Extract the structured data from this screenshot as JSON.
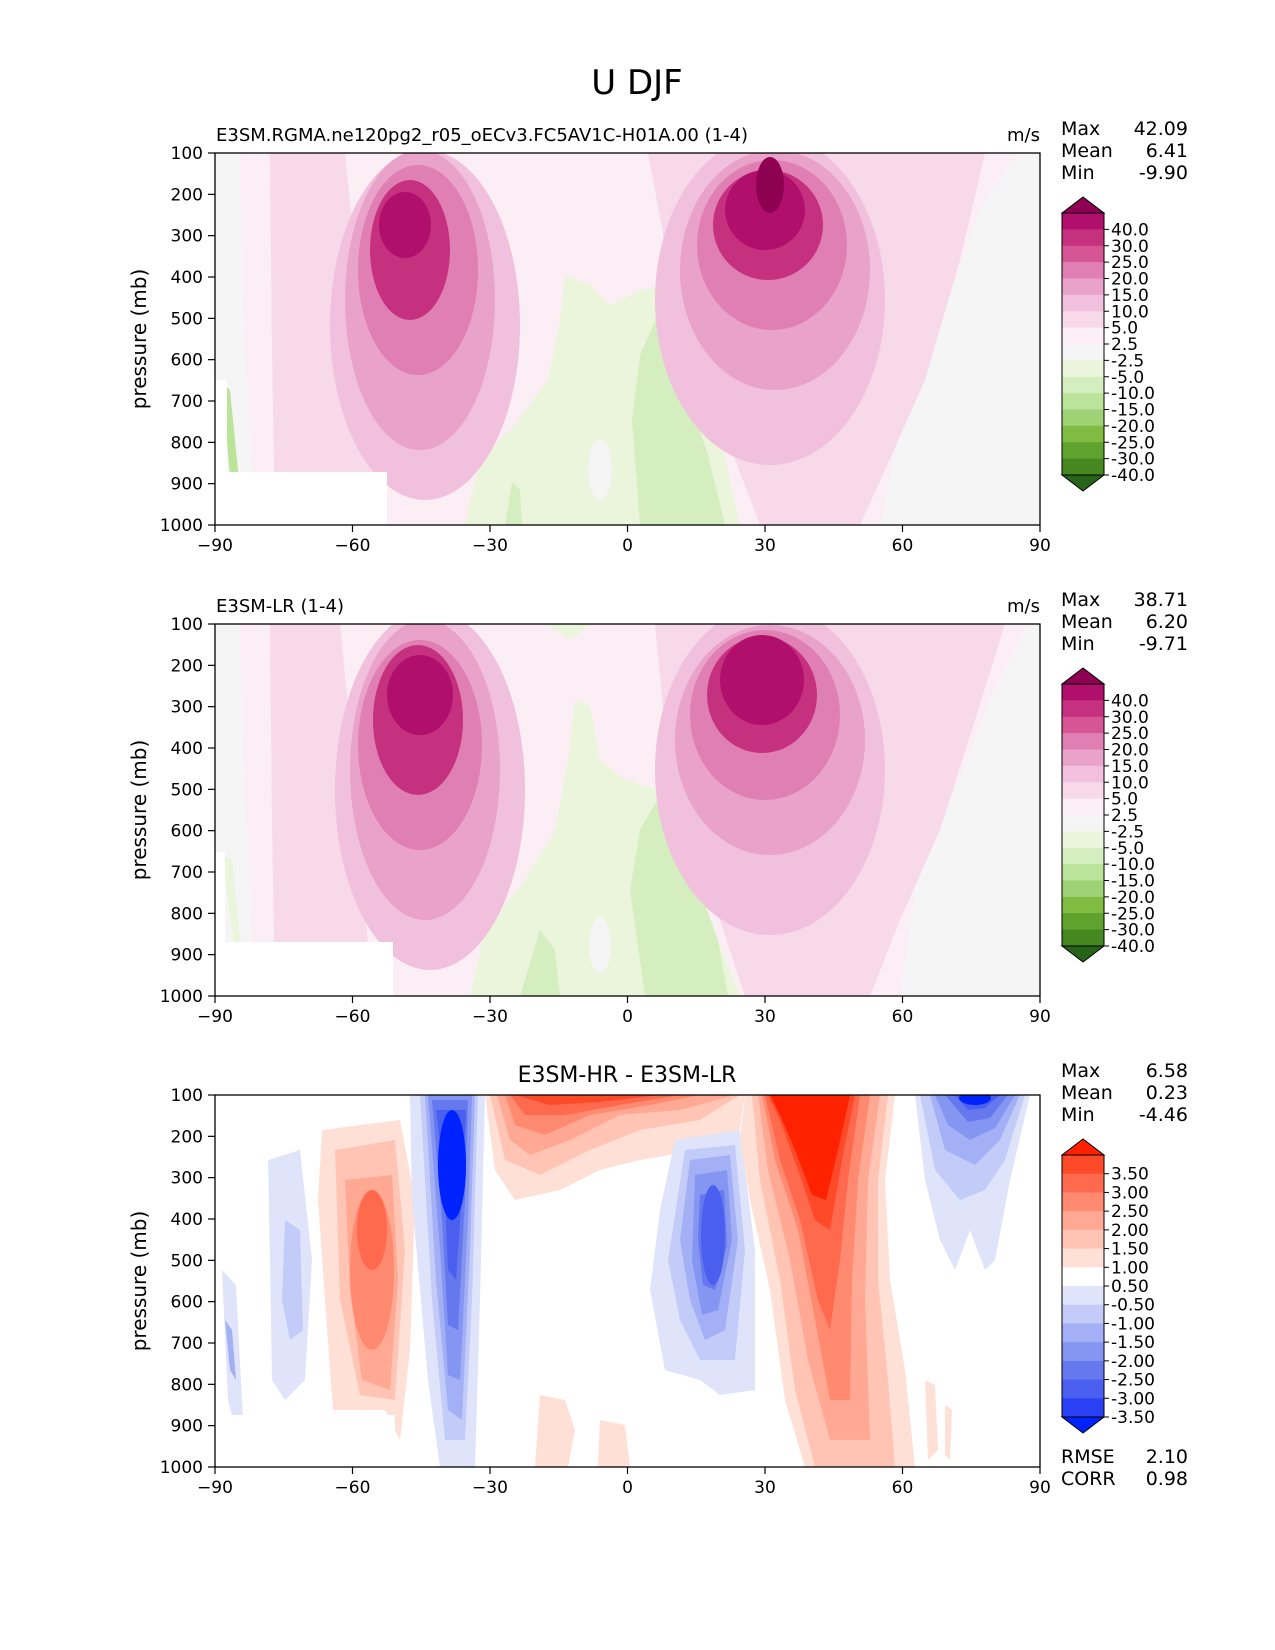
{
  "figure": {
    "title": "U DJF"
  },
  "chart_data": [
    {
      "type": "contour",
      "panel": "test",
      "title_left": "E3SM.RGMA.ne120pg2_r05_oECv3.FC5AV1C-H01A.00 (1-4)",
      "title_center": "",
      "title_right": "m/s",
      "xlabel": "",
      "ylabel": "pressure (mb)",
      "xlim": [
        -90,
        90
      ],
      "ylim": [
        1000,
        100
      ],
      "xticks": [
        -90,
        -60,
        -30,
        0,
        30,
        60,
        90
      ],
      "xtick_labels": [
        "−90",
        "−60",
        "−30",
        "0",
        "30",
        "60",
        "90"
      ],
      "yticks": [
        100,
        200,
        300,
        400,
        500,
        600,
        700,
        800,
        900,
        1000
      ],
      "yticks_labels": [
        "100",
        "200",
        "300",
        "400",
        "500",
        "600",
        "700",
        "800",
        "900",
        "1000"
      ],
      "stats": [
        {
          "label": "Max",
          "value": "42.09"
        },
        {
          "label": "Mean",
          "value": "6.41"
        },
        {
          "label": "Min",
          "value": "-9.90"
        }
      ],
      "colorbar": {
        "levels": [
          "40.0",
          "30.0",
          "25.0",
          "20.0",
          "15.0",
          "10.0",
          "5.0",
          "2.5",
          "-2.5",
          "-5.0",
          "-10.0",
          "-15.0",
          "-20.0",
          "-25.0",
          "-30.0",
          "-40.0"
        ],
        "colors": [
          "#8e0152",
          "#b0106c",
          "#c6317f",
          "#d65594",
          "#e07fb3",
          "#e9a2c9",
          "#f1c0dd",
          "#f7d9ea",
          "#fbeef4",
          "#f5f5f5",
          "#ebf5dc",
          "#d5eec0",
          "#bce39a",
          "#9fd274",
          "#7fbc41",
          "#5fa22d",
          "#44881f",
          "#276419"
        ]
      },
      "features": [
        {
          "name": "southern-jet",
          "center_lat": -45,
          "peak_pressure": 250,
          "peak_value": 35
        },
        {
          "name": "northern-jet",
          "center_lat": 30,
          "peak_pressure": 200,
          "peak_value": 42.09
        },
        {
          "name": "tropical-easterlies",
          "center_lat": 5,
          "peak_pressure": 700,
          "peak_value": -9.9
        }
      ]
    },
    {
      "type": "contour",
      "panel": "reference",
      "title_left": "E3SM-LR (1-4)",
      "title_center": "",
      "title_right": "m/s",
      "xlabel": "",
      "ylabel": "pressure (mb)",
      "xlim": [
        -90,
        90
      ],
      "ylim": [
        1000,
        100
      ],
      "xticks": [
        -90,
        -60,
        -30,
        0,
        30,
        60,
        90
      ],
      "xtick_labels": [
        "−90",
        "−60",
        "−30",
        "0",
        "30",
        "60",
        "90"
      ],
      "yticks": [
        100,
        200,
        300,
        400,
        500,
        600,
        700,
        800,
        900,
        1000
      ],
      "yticks_labels": [
        "100",
        "200",
        "300",
        "400",
        "500",
        "600",
        "700",
        "800",
        "900",
        "1000"
      ],
      "stats": [
        {
          "label": "Max",
          "value": "38.71"
        },
        {
          "label": "Mean",
          "value": "6.20"
        },
        {
          "label": "Min",
          "value": "-9.71"
        }
      ],
      "colorbar": {
        "levels": [
          "40.0",
          "30.0",
          "25.0",
          "20.0",
          "15.0",
          "10.0",
          "5.0",
          "2.5",
          "-2.5",
          "-5.0",
          "-10.0",
          "-15.0",
          "-20.0",
          "-25.0",
          "-30.0",
          "-40.0"
        ],
        "colors": [
          "#8e0152",
          "#b0106c",
          "#c6317f",
          "#d65594",
          "#e07fb3",
          "#e9a2c9",
          "#f1c0dd",
          "#f7d9ea",
          "#fbeef4",
          "#f5f5f5",
          "#ebf5dc",
          "#d5eec0",
          "#bce39a",
          "#9fd274",
          "#7fbc41",
          "#5fa22d",
          "#44881f",
          "#276419"
        ]
      },
      "features": [
        {
          "name": "southern-jet",
          "center_lat": -44,
          "peak_pressure": 230,
          "peak_value": 32
        },
        {
          "name": "northern-jet",
          "center_lat": 30,
          "peak_pressure": 230,
          "peak_value": 38.71
        },
        {
          "name": "tropical-easterlies",
          "center_lat": 5,
          "peak_pressure": 750,
          "peak_value": -9.71
        }
      ]
    },
    {
      "type": "contour",
      "panel": "difference",
      "title_left": "",
      "title_center": "E3SM-HR - E3SM-LR",
      "title_right": "",
      "xlabel": "",
      "ylabel": "pressure (mb)",
      "xlim": [
        -90,
        90
      ],
      "ylim": [
        1000,
        100
      ],
      "xticks": [
        -90,
        -60,
        -30,
        0,
        30,
        60,
        90
      ],
      "xtick_labels": [
        "−90",
        "−60",
        "−30",
        "0",
        "30",
        "60",
        "90"
      ],
      "yticks": [
        100,
        200,
        300,
        400,
        500,
        600,
        700,
        800,
        900,
        1000
      ],
      "yticks_labels": [
        "100",
        "200",
        "300",
        "400",
        "500",
        "600",
        "700",
        "800",
        "900",
        "1000"
      ],
      "stats": [
        {
          "label": "Max",
          "value": "6.58"
        },
        {
          "label": "Mean",
          "value": "0.23"
        },
        {
          "label": "Min",
          "value": "-4.46"
        }
      ],
      "extra_stats": [
        {
          "label": "RMSE",
          "value": "2.10"
        },
        {
          "label": "CORR",
          "value": "0.98"
        }
      ],
      "colorbar": {
        "levels": [
          "3.50",
          "3.00",
          "2.50",
          "2.00",
          "1.50",
          "1.00",
          "0.50",
          "-0.50",
          "-1.00",
          "-1.50",
          "-2.00",
          "-2.50",
          "-3.00",
          "-3.50"
        ],
        "colors": [
          "#ff2200",
          "#ff4a2a",
          "#ff6a4e",
          "#ff8a70",
          "#ffa894",
          "#ffc4b4",
          "#ffe0d6",
          "#ffffff",
          "#dfe4fb",
          "#c3ccf8",
          "#a3b0f5",
          "#8496f1",
          "#6678ee",
          "#4a5ef0",
          "#2a40f4",
          "#0022ff"
        ]
      },
      "features": [
        {
          "name": "southern-red-band",
          "center_lat": -57,
          "peak_pressure": 350,
          "peak_value": 2.5
        },
        {
          "name": "southern-blue-band",
          "center_lat": -38,
          "peak_pressure": 250,
          "peak_value": -4.46
        },
        {
          "name": "tropical-red-top",
          "center_lat": -15,
          "peak_pressure": 150,
          "peak_value": 3.5
        },
        {
          "name": "northern-blue-core",
          "center_lat": 20,
          "peak_pressure": 450,
          "peak_value": -3.0
        },
        {
          "name": "northern-red-jet",
          "center_lat": 38,
          "peak_pressure": 200,
          "peak_value": 6.58
        },
        {
          "name": "arctic-blue",
          "center_lat": 77,
          "peak_pressure": 150,
          "peak_value": -3.5
        }
      ]
    }
  ]
}
